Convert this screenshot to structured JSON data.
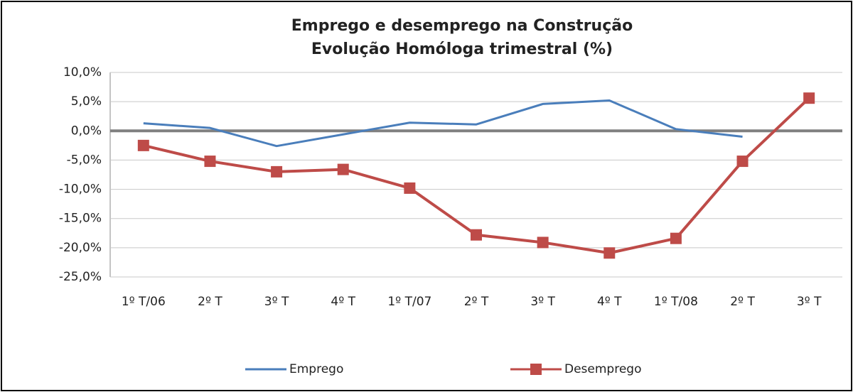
{
  "chart_data": {
    "type": "line",
    "title": "Emprego e desemprego na Construção",
    "subtitle": "Evolução Homóloga trimestral (%)",
    "categories": [
      "1º T/06",
      "2º T",
      "3º T",
      "4º T",
      "1º T/07",
      "2º T",
      "3º T",
      "4º T",
      "1º T/08",
      "2º T",
      "3º T"
    ],
    "series": [
      {
        "name": "Emprego",
        "color": "#4a7ebb",
        "marker": "none",
        "values": [
          1.3,
          0.5,
          -2.6,
          -0.6,
          1.4,
          1.1,
          4.6,
          5.2,
          0.3,
          -1.0,
          null
        ]
      },
      {
        "name": "Desemprego",
        "color": "#be4b48",
        "marker": "square",
        "values": [
          -2.5,
          -5.2,
          -7.0,
          -6.6,
          -9.8,
          -17.8,
          -19.1,
          -20.9,
          -18.4,
          -5.2,
          5.6
        ]
      }
    ],
    "ylim": [
      -25,
      10
    ],
    "yticks": [
      {
        "value": -25,
        "label": "-25,0%"
      },
      {
        "value": -20,
        "label": "-20,0%"
      },
      {
        "value": -15,
        "label": "-15,0%"
      },
      {
        "value": -10,
        "label": "-10,0%"
      },
      {
        "value": -5,
        "label": "-5,0%"
      },
      {
        "value": 0,
        "label": "0,0%"
      },
      {
        "value": 5,
        "label": "5,0%"
      },
      {
        "value": 10,
        "label": "10,0%"
      }
    ],
    "grid": true,
    "legend": "bottom"
  }
}
